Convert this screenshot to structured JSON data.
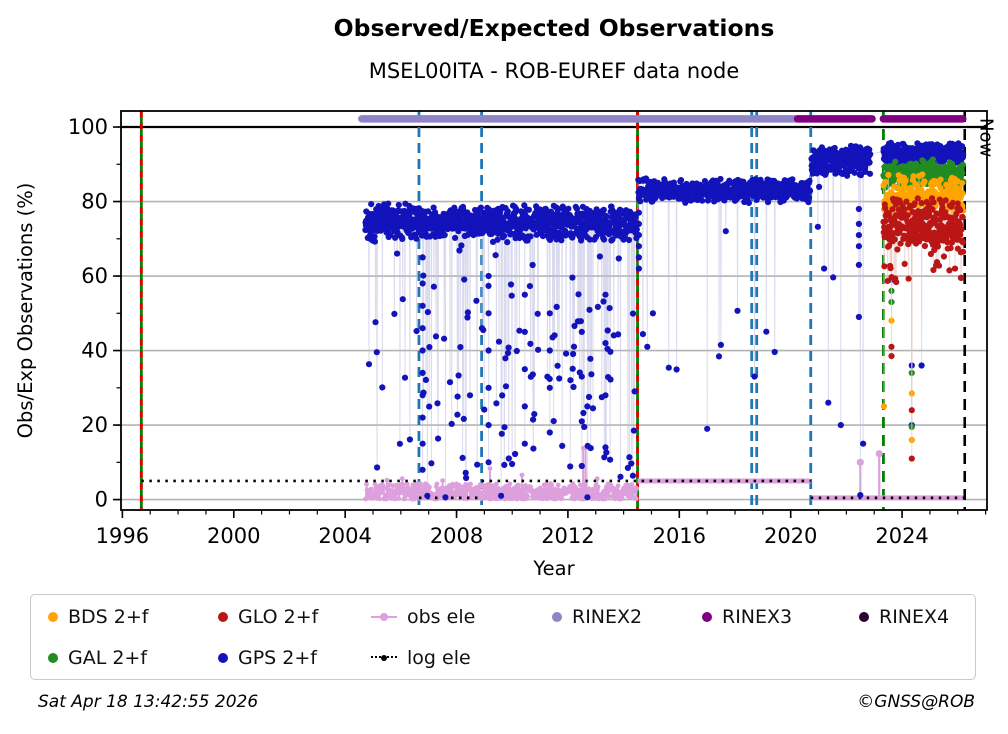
{
  "footer": {
    "timestamp": "Sat Apr 18 13:42:55 2026",
    "credit": "©GNSS@ROB"
  },
  "chart_data": {
    "type": "scatter",
    "title": "Observed/Expected Observations",
    "subtitle": "MSEL00ITA - ROB-EUREF data node",
    "xlabel": "Year",
    "ylabel": "Obs/Exp Observations (%)",
    "xlim": [
      1995.95,
      2027.05
    ],
    "ylim": [
      -2.8,
      104.3
    ],
    "xticks": [
      1996,
      2000,
      2004,
      2008,
      2012,
      2016,
      2020,
      2024
    ],
    "yticks": [
      0,
      20,
      40,
      60,
      80,
      100
    ],
    "grid_color": "#b4b4b4",
    "hundred_line_y": 100,
    "now": {
      "x": 2026.25,
      "label": "Now"
    },
    "seed": 7,
    "avail_bars": [
      {
        "label": "RINEX2",
        "color": "#8f84c8",
        "x0": 2004.6,
        "x1": 2020.35,
        "y": 102.2
      },
      {
        "label": "RINEX3",
        "color": "#800080",
        "x0": 2020.25,
        "x1": 2022.92,
        "y": 102.2
      },
      {
        "label": "RINEX3",
        "color": "#800080",
        "x0": 2023.33,
        "x1": 2026.18,
        "y": 102.2
      }
    ],
    "vlines": [
      {
        "x": 1996.68,
        "style": "green-red"
      },
      {
        "x": 2006.65,
        "style": "blue-dash"
      },
      {
        "x": 2008.9,
        "style": "blue-dash"
      },
      {
        "x": 2014.5,
        "style": "green-red"
      },
      {
        "x": 2018.6,
        "style": "blue-dash"
      },
      {
        "x": 2018.78,
        "style": "blue-dash"
      },
      {
        "x": 2020.72,
        "style": "blue-dash"
      },
      {
        "x": 2023.33,
        "style": "green-dash"
      },
      {
        "x": 2026.25,
        "style": "now"
      }
    ],
    "log_ele": {
      "label": "log ele",
      "color": "#000000",
      "segments": [
        [
          1996.68,
          2006.65,
          5.0
        ],
        [
          2006.65,
          2008.9,
          0.45
        ],
        [
          2008.9,
          2020.72,
          5.0
        ],
        [
          2020.72,
          2026.25,
          0.45
        ]
      ]
    },
    "obs_ele": {
      "label": "obs ele",
      "color": "#dda0dd",
      "wiggle": {
        "x0": 2004.72,
        "x1": 2014.48,
        "n": 540,
        "min": 0.15,
        "max": 4.3
      },
      "flats": [
        [
          2014.5,
          2020.72,
          5.0
        ],
        [
          2020.74,
          2026.2,
          0.45
        ]
      ],
      "spikes": [
        [
          2005.5,
          5.2
        ],
        [
          2006.05,
          5.6
        ],
        [
          2007.5,
          5.1
        ],
        [
          2009.2,
          8.3
        ],
        [
          2010.35,
          6.6
        ],
        [
          2012.55,
          13.8
        ],
        [
          2012.63,
          13.8
        ],
        [
          2013.05,
          5.6
        ],
        [
          2022.5,
          10.0
        ],
        [
          2023.18,
          12.3
        ]
      ]
    },
    "series_order": [
      "gps",
      "gal",
      "bds",
      "glo"
    ],
    "series": {
      "gps": {
        "label": "GPS 2+f",
        "color": "#1313bb",
        "light": "#bcbce0",
        "segments": [
          {
            "x0": 2004.72,
            "x1": 2006.62,
            "n": 220,
            "band": [
              69,
              80.5
            ],
            "lowFrac": 0.085,
            "low": [
              6,
              68
            ]
          },
          {
            "x0": 2006.62,
            "x1": 2008.9,
            "n": 250,
            "band": [
              70,
              79
            ],
            "lowFrac": 0.11,
            "low": [
              5,
              70
            ]
          },
          {
            "x0": 2008.9,
            "x1": 2014.48,
            "n": 620,
            "band": [
              69,
              79.5
            ],
            "lowFrac": 0.12,
            "low": [
              5,
              70
            ]
          },
          {
            "x0": 2014.52,
            "x1": 2020.7,
            "n": 560,
            "band": [
              79.5,
              86.5
            ],
            "lowFrac": 0.012,
            "low": [
              30,
              76
            ]
          },
          {
            "x0": 2020.74,
            "x1": 2022.86,
            "n": 230,
            "band": [
              86.5,
              95.5
            ],
            "lowFrac": 0.02,
            "low": [
              55,
              85
            ]
          },
          {
            "x0": 2023.33,
            "x1": 2026.2,
            "n": 300,
            "band": [
              89.5,
              96
            ],
            "lowFrac": 0.0,
            "low": [
              40,
              85
            ]
          }
        ],
        "extra_points": [
          [
            2006.95,
            1.0
          ],
          [
            2007.6,
            0.6
          ],
          [
            2009.6,
            1.0
          ],
          [
            2012.7,
            0.6
          ],
          [
            2015.05,
            50
          ],
          [
            2017.0,
            19
          ],
          [
            2018.7,
            33
          ],
          [
            2021.2,
            62
          ],
          [
            2021.35,
            26
          ],
          [
            2021.8,
            20
          ],
          [
            2022.5,
            1.2
          ],
          [
            2022.6,
            15
          ],
          [
            2024.7,
            36
          ]
        ]
      },
      "gal": {
        "label": "GAL 2+f",
        "color": "#228b22",
        "light": "#bfdcbf",
        "segments": [
          {
            "x0": 2023.33,
            "x1": 2026.2,
            "n": 280,
            "band": [
              83,
              91.5
            ],
            "lowFrac": 0.0,
            "low": [
              40,
              80
            ]
          }
        ],
        "extra_points": []
      },
      "bds": {
        "label": "BDS 2+f",
        "color": "#ffa500",
        "light": "#f3ddb2",
        "segments": [
          {
            "x0": 2023.33,
            "x1": 2026.2,
            "n": 200,
            "band": [
              75.5,
              88
            ],
            "lowFrac": 0.0,
            "low": [
              40,
              74
            ]
          }
        ],
        "extra_points": []
      },
      "glo": {
        "label": "GLO 2+f",
        "color": "#bb1616",
        "light": "#e6bcbc",
        "segments": [
          {
            "x0": 2023.33,
            "x1": 2026.2,
            "n": 290,
            "band": [
              65.5,
              82
            ],
            "lowFrac": 0.05,
            "low": [
              58,
              66
            ]
          }
        ],
        "extra_points": [
          [
            2025.9,
            62
          ]
        ]
      }
    },
    "dropout_columns": [
      {
        "x": 2006.78,
        "gps": [
          65,
          58,
          52,
          46,
          40,
          34,
          28,
          22,
          15,
          8
        ]
      },
      {
        "x": 2009.15,
        "gps": [
          60,
          50,
          40,
          30,
          20,
          10
        ]
      },
      {
        "x": 2010.45,
        "gps": [
          55,
          45,
          35,
          25,
          15
        ]
      },
      {
        "x": 2011.35,
        "gps": [
          50,
          40,
          30,
          18
        ]
      },
      {
        "x": 2012.5,
        "gps": [
          45,
          33,
          21,
          9
        ]
      },
      {
        "x": 2013.35,
        "gps": [
          55,
          42,
          28,
          14
        ]
      },
      {
        "x": 2014.55,
        "gps": [
          77,
          74,
          71,
          68,
          65,
          62
        ]
      },
      {
        "x": 2022.45,
        "gps": [
          78,
          74,
          71,
          68,
          63,
          49
        ]
      },
      {
        "x": 2023.35,
        "bds": [
          25
        ]
      },
      {
        "x": 2023.62,
        "gps": [
          59
        ],
        "gal": [
          56,
          53
        ],
        "bds": [
          48
        ],
        "glo": [
          41,
          38.5
        ]
      },
      {
        "x": 2024.35,
        "gps": [
          36,
          20
        ],
        "gal": [
          34,
          19.5
        ],
        "bds": [
          28.5,
          16
        ],
        "glo": [
          24,
          11
        ]
      }
    ],
    "legend": {
      "rows": [
        [
          {
            "label": "BDS 2+f",
            "type": "dot",
            "color": "#ffa500"
          },
          {
            "label": "GLO 2+f",
            "type": "dot",
            "color": "#bb1616"
          },
          {
            "label": "obs ele",
            "type": "line-dot",
            "color": "#dda0dd"
          },
          {
            "label": "RINEX2",
            "type": "dot",
            "color": "#8f84c8"
          },
          {
            "label": "RINEX3",
            "type": "dot",
            "color": "#800080"
          },
          {
            "label": "RINEX4",
            "type": "dot",
            "color": "#2d0130"
          }
        ],
        [
          {
            "label": "GAL 2+f",
            "type": "dot",
            "color": "#228b22"
          },
          {
            "label": "GPS 2+f",
            "type": "dot",
            "color": "#1313bb"
          },
          {
            "label": "log ele",
            "type": "dotted-line",
            "color": "#000000"
          }
        ]
      ]
    },
    "line_colors": {
      "blue_dash": "#1f77b4",
      "green_solid": "#008000",
      "red_dash": "#e00000",
      "green_dash": "#008000",
      "now": "#000000"
    }
  }
}
